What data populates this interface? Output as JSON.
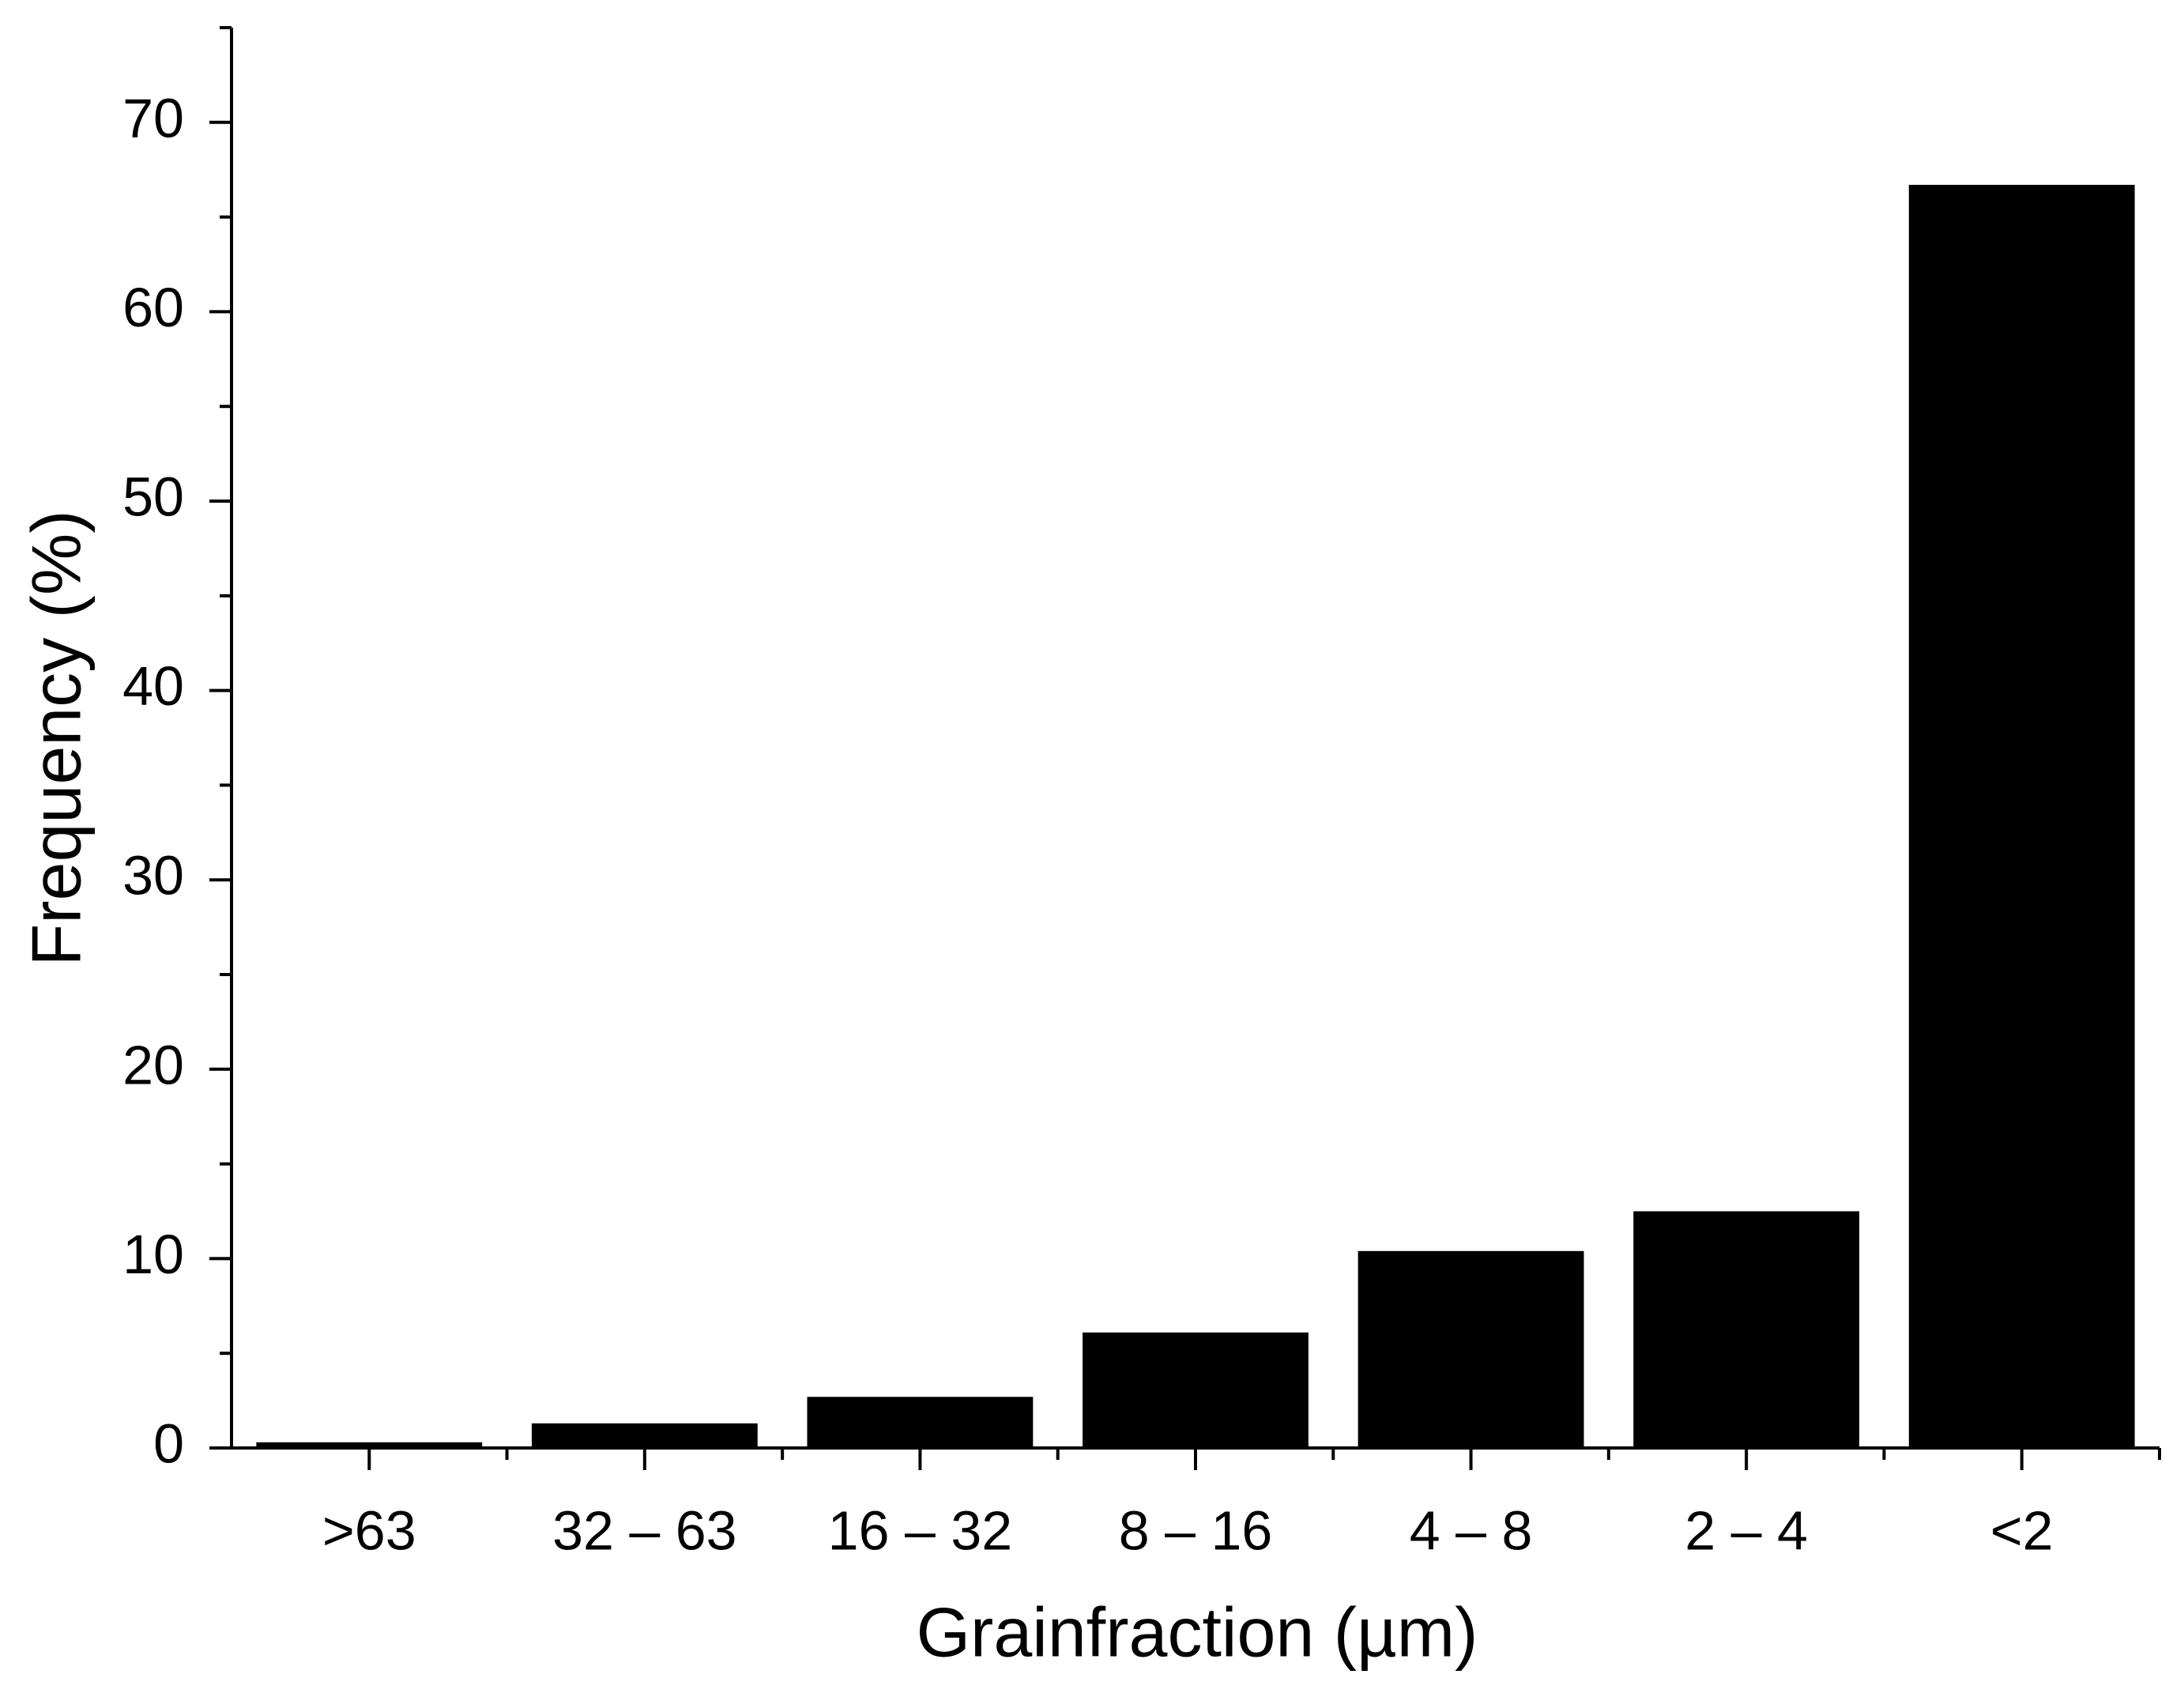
{
  "chart_data": {
    "type": "bar",
    "x_label": "Grainfraction (µm)",
    "y_label": "Frequency (%)",
    "categories": [
      ">63",
      "32 – 63",
      "16 – 32",
      "8 – 16",
      "4 – 8",
      "2 – 4",
      "<2"
    ],
    "values": [
      0.3,
      1.3,
      2.7,
      6.1,
      10.4,
      12.5,
      66.7
    ],
    "color": "#000000",
    "ylim": [
      0,
      75
    ],
    "yticks": [
      0,
      10,
      20,
      30,
      40,
      50,
      60,
      70
    ],
    "yminorticks": [
      5,
      15,
      25,
      35,
      45,
      55,
      65,
      75
    ],
    "grid": false
  }
}
